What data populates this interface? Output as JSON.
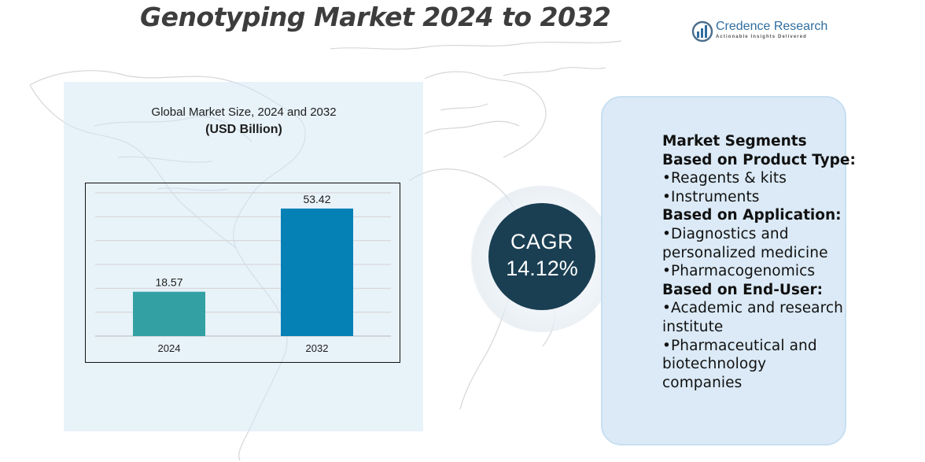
{
  "title": "Genotyping Market 2024 to 2032",
  "logo": {
    "name": "Credence Research",
    "tagline": "Actionable Insights Delivered"
  },
  "chart_panel": {
    "subtitle": "Global Market Size, 2024 and 2032",
    "unit": "(USD Billion)"
  },
  "chart_data": {
    "type": "bar",
    "title": "Global Market Size, 2024 and 2032",
    "ylabel": "USD Billion",
    "xlabel": "",
    "categories": [
      "2024",
      "2032"
    ],
    "values": [
      18.57,
      53.42
    ],
    "value_labels": [
      "18.57",
      "53.42"
    ],
    "bar_colors": [
      "#33a1a4",
      "#0581b6"
    ],
    "ylim": [
      0,
      60
    ],
    "grid": true,
    "legend": "none"
  },
  "cagr": {
    "label": "CAGR",
    "value": "14.12%"
  },
  "segments": {
    "heading": "Market Segments",
    "groups": [
      {
        "title": "Based on Product Type:",
        "items": [
          "•Reagents & kits",
          "•Instruments"
        ]
      },
      {
        "title": "Based on Application:",
        "items": [
          "•Diagnostics and personalized medicine",
          "•Pharmacogenomics"
        ]
      },
      {
        "title": "Based on End-User:",
        "items": [
          "•Academic and research institute",
          "•Pharmaceutical and biotechnology companies"
        ]
      }
    ]
  },
  "colors": {
    "title": "#3d3d3d",
    "cagr_circle": "#1a3f53",
    "segments_panel": "#dbeaf6",
    "chart_panel": "#d6e8f4"
  }
}
